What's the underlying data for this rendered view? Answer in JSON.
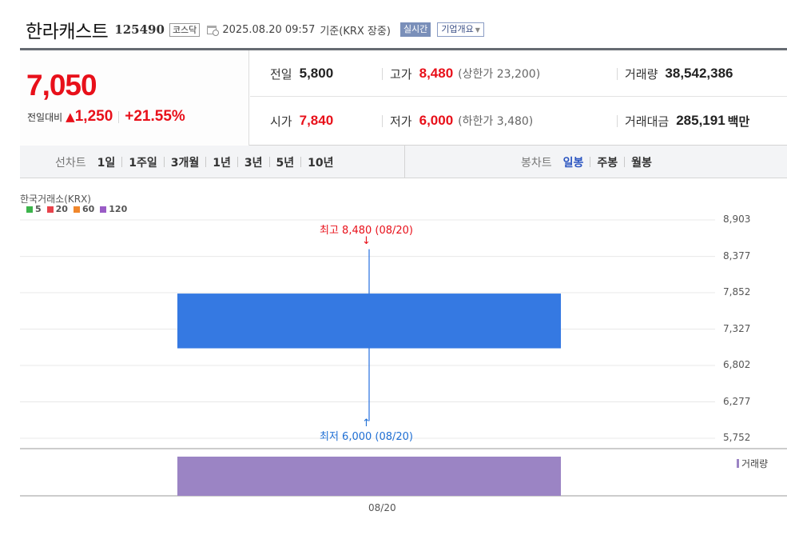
{
  "header": {
    "stock_name": "한라캐스트",
    "stock_code": "125490",
    "market": "코스닥",
    "datetime": "2025.08.20 09:57",
    "basis": "기준(KRX 장중)",
    "realtime_label": "실시간",
    "company_info_label": "기업개요"
  },
  "quote": {
    "price": "7,050",
    "change_label": "전일대비",
    "change_symbol": "▲",
    "change_amount": "1,250",
    "change_pct": "+21.55%",
    "prev_close_label": "전일",
    "prev_close": "5,800",
    "high_label": "고가",
    "high": "8,480",
    "upper_limit": "(상한가 23,200)",
    "volume_label": "거래량",
    "volume": "38,542,386",
    "open_label": "시가",
    "open": "7,840",
    "low_label": "저가",
    "low": "6,000",
    "lower_limit": "(하한가 3,480)",
    "value_label": "거래대금",
    "value": "285,191",
    "value_unit": "백만"
  },
  "period_bar": {
    "line_label": "선차트",
    "line_options": [
      "1일",
      "1주일",
      "3개월",
      "1년",
      "3년",
      "5년",
      "10년"
    ],
    "candle_label": "봉차트",
    "candle_options": [
      "일봉",
      "주봉",
      "월봉"
    ],
    "selected_candle": "일봉"
  },
  "chart": {
    "source": "한국거래소(KRX)",
    "ma_legend": [
      {
        "label": "5",
        "color": "#3cb44b"
      },
      {
        "label": "20",
        "color": "#e8434b"
      },
      {
        "label": "60",
        "color": "#f0872c"
      },
      {
        "label": "120",
        "color": "#9a5cc6"
      }
    ],
    "y_ticks": [
      "8,903",
      "8,377",
      "7,852",
      "7,327",
      "6,802",
      "6,277",
      "5,752"
    ],
    "high_annotation": "최고 8,480 (08/20)",
    "low_annotation": "최저 6,000 (08/20)",
    "volume_legend": "거래량",
    "x_label": "08/20",
    "candle_color": "#3579e2",
    "volume_color": "#9b84c4",
    "high_color": "#e8101a",
    "low_color": "#1f6fd4"
  },
  "chart_data": {
    "type": "candlestick",
    "x": [
      "08/20"
    ],
    "open": [
      7840
    ],
    "high": [
      8480
    ],
    "low": [
      6000
    ],
    "close": [
      7050
    ],
    "ylim": [
      5752,
      8903
    ],
    "yticks": [
      8903,
      8377,
      7852,
      7327,
      6802,
      6277,
      5752
    ],
    "volume": [
      38542386
    ]
  }
}
